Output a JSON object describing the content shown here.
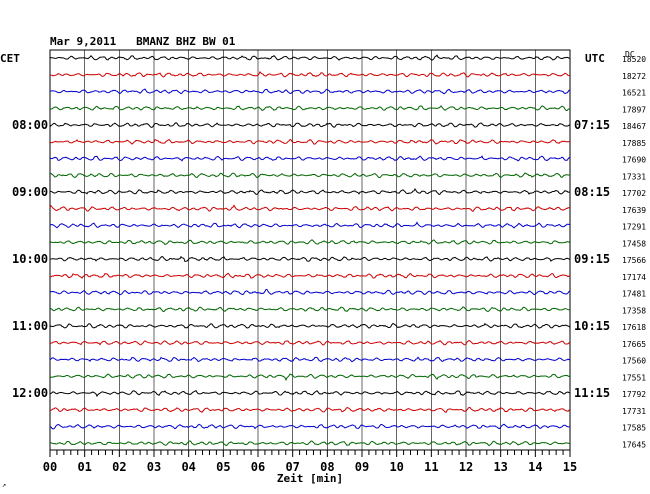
{
  "header": {
    "title": "Mar 9,2011   BMANZ BHZ BW 01",
    "left_tz": "CET",
    "right_tz": "UTC",
    "dc_label": "DC",
    "footer_mark": "↗"
  },
  "chart_data": {
    "type": "line",
    "title": "Mar 9,2011   BMANZ BHZ BW 01",
    "xlabel": "Zeit [min]",
    "xlim": [
      0,
      15
    ],
    "x_ticks": [
      "00",
      "01",
      "02",
      "03",
      "04",
      "05",
      "06",
      "07",
      "08",
      "09",
      "10",
      "11",
      "12",
      "13",
      "14",
      "15"
    ],
    "grid": true,
    "trace_colors": [
      "#000000",
      "#cc0000",
      "#0000cc",
      "#006600"
    ],
    "dc_offsets": [
      18520,
      18272,
      16521,
      17897,
      18467,
      17885,
      17690,
      17331,
      17702,
      17639,
      17291,
      17458,
      17566,
      17174,
      17481,
      17358,
      17618,
      17665,
      17560,
      17551,
      17792,
      17731,
      17585,
      17645
    ],
    "left_time_labels": [
      {
        "row": 4,
        "label": "08:00"
      },
      {
        "row": 8,
        "label": "09:00"
      },
      {
        "row": 12,
        "label": "10:00"
      },
      {
        "row": 16,
        "label": "11:00"
      },
      {
        "row": 20,
        "label": "12:00"
      }
    ],
    "right_time_labels": [
      {
        "row": 4,
        "label": "07:15"
      },
      {
        "row": 8,
        "label": "08:15"
      },
      {
        "row": 12,
        "label": "09:15"
      },
      {
        "row": 16,
        "label": "10:15"
      },
      {
        "row": 20,
        "label": "11:15"
      }
    ]
  }
}
